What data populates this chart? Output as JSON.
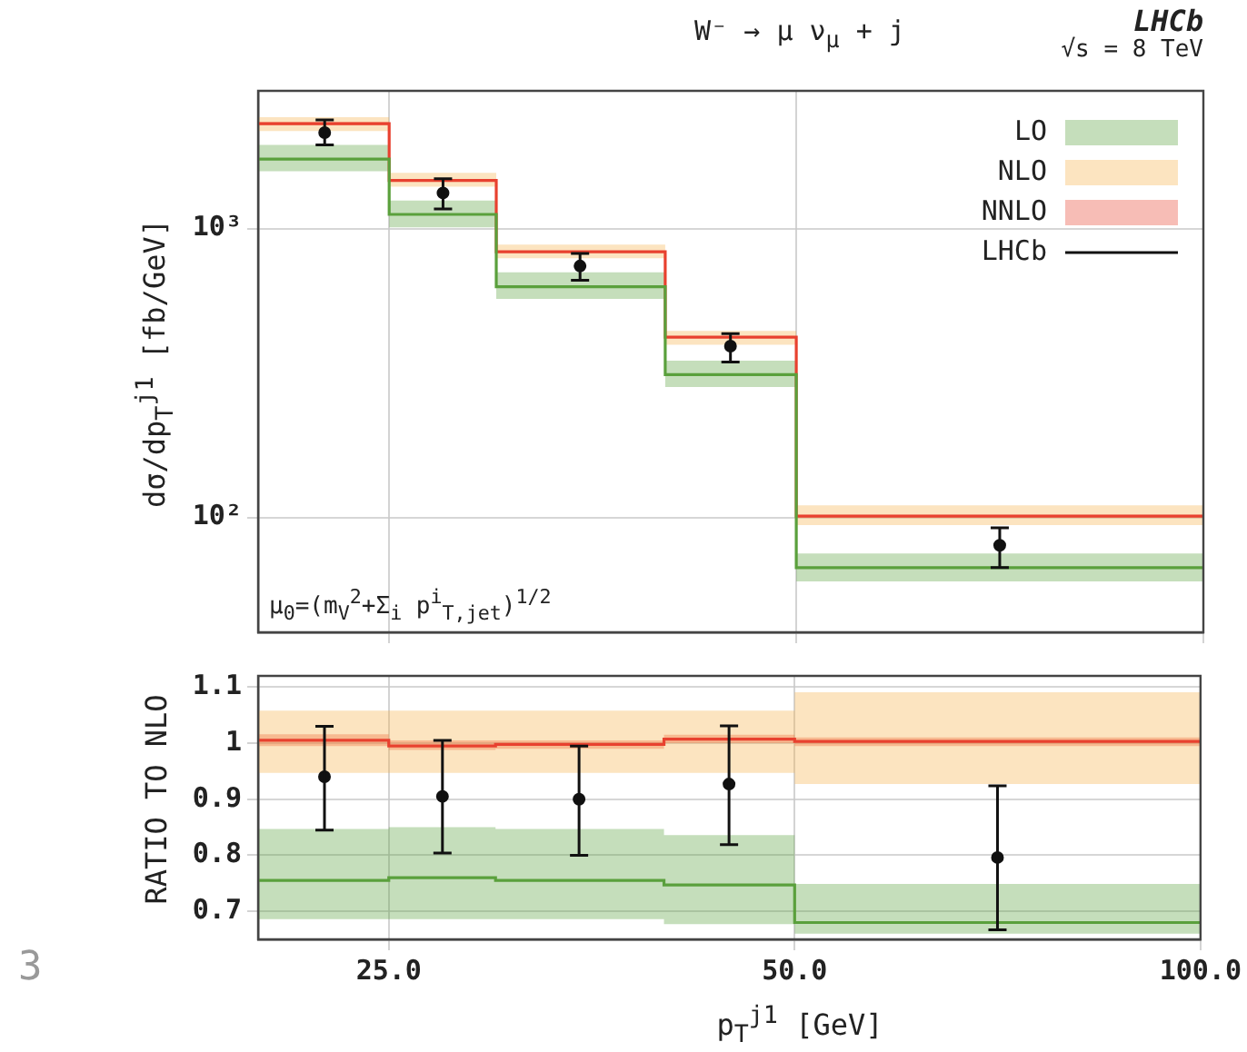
{
  "chart_data": [
    {
      "type": "step",
      "title": "W⁻ → μ ν$_{μ}$ + j",
      "ylabel": "dσ/dp$_{T}$$^{j1}$ [fb/GeV]",
      "annotations": [
        "LHCb",
        "√s = 8 TeV",
        "μ$_{0}$=(m$_{V}$$^{2}$+Σ$_{i}$ p$^{i}$$_{T,jet}$)$^{1/2}$"
      ],
      "x": [
        20,
        25,
        30,
        40,
        50,
        100
      ],
      "series": [
        {
          "name": "LO",
          "color": "#5aa03c",
          "values": [
            1740,
            1120,
            629,
            312,
            67,
            67
          ],
          "lower": [
            1580,
            1010,
            571,
            283,
            60,
            60
          ],
          "upper": [
            1950,
            1250,
            706,
            349,
            75,
            75
          ]
        },
        {
          "name": "NLO",
          "color": "#f5b14a",
          "values": [
            null,
            null,
            null,
            null,
            null,
            null
          ],
          "lower": [
            2178,
            1397,
            789,
            396,
            94,
            94
          ],
          "upper": [
            2433,
            1561,
            881,
            442,
            110,
            110
          ]
        },
        {
          "name": "NNLO",
          "color": "#e8412f",
          "values": [
            2310,
            1468,
            831,
            421,
            101,
            101
          ],
          "lower": [
            2280,
            1455,
            825,
            418,
            100,
            100
          ],
          "upper": [
            2340,
            1480,
            838,
            424,
            102,
            102
          ]
        },
        {
          "name": "LHCb",
          "type": "scatter",
          "marker": "circle",
          "color": "#111111",
          "x": [
            22.4,
            27.4,
            34.6,
            44.7,
            70.7
          ],
          "values": [
            2150,
            1329,
            742,
            392,
            80
          ],
          "errors": [
            [
              1950,
              2380
            ],
            [
              1169,
              1489
            ],
            [
              662,
              820
            ],
            [
              345,
              433
            ],
            [
              67,
              92
            ]
          ]
        }
      ],
      "xlim": [
        20,
        100
      ],
      "xticks": [
        {
          "value": 25,
          "label": null
        },
        {
          "value": 50,
          "label": null
        },
        {
          "value": 100,
          "label": null
        }
      ],
      "ylim": [
        40,
        3000
      ],
      "yticks": [
        {
          "value": 100,
          "label": "10²"
        },
        {
          "value": 1000,
          "label": "10³"
        }
      ],
      "log": "xy",
      "grid": true,
      "legend": "top right",
      "tick_labels": "y"
    },
    {
      "type": "step",
      "xlabel": "p$_{T}$$^{j1}$ [GeV]",
      "ylabel": "RATIO TO NLO",
      "annotations": [
        "3"
      ],
      "x": [
        20,
        25,
        30,
        40,
        50,
        100
      ],
      "series": [
        {
          "color": "#5aa03c",
          "values": [
            0.755,
            0.76,
            0.755,
            0.747,
            0.68,
            0.68
          ],
          "lower": [
            0.686,
            0.686,
            0.686,
            0.677,
            0.66,
            0.66
          ],
          "upper": [
            0.847,
            0.85,
            0.847,
            0.836,
            0.749,
            0.749
          ]
        },
        {
          "color": "#f5b14a",
          "values": [
            null,
            null,
            null,
            null,
            null,
            null
          ],
          "lower": [
            0.947,
            0.947,
            0.947,
            0.947,
            0.927,
            0.927
          ],
          "upper": [
            1.058,
            1.058,
            1.058,
            1.058,
            1.091,
            1.091
          ]
        },
        {
          "color": "#e8412f",
          "values": [
            1.005,
            0.995,
            0.998,
            1.007,
            1.003,
            1.003
          ],
          "lower": [
            0.995,
            0.988,
            0.99,
            1,
            0.995,
            0.995
          ],
          "upper": [
            1.016,
            1.005,
            1.005,
            1.015,
            1.01,
            1.01
          ]
        },
        {
          "type": "scatter",
          "marker": "circle",
          "color": "#111111",
          "x": [
            22.4,
            27.4,
            34.6,
            44.7,
            70.7
          ],
          "values": [
            0.94,
            0.905,
            0.9,
            0.927,
            0.796
          ],
          "errors": [
            [
              0.845,
              1.03
            ],
            [
              0.804,
              1.005
            ],
            [
              0.8,
              0.995
            ],
            [
              0.819,
              1.031
            ],
            [
              0.667,
              0.924
            ]
          ]
        }
      ],
      "xlim": [
        20,
        100
      ],
      "xticks": [
        {
          "value": 25,
          "label": "25.0"
        },
        {
          "value": 50,
          "label": "50.0"
        },
        {
          "value": 100,
          "label": "100.0"
        }
      ],
      "ylim": [
        0.65,
        1.12
      ],
      "yticks": [
        0.7,
        0.8,
        0.9,
        1,
        1.1
      ],
      "log": "x",
      "grid": true
    }
  ]
}
